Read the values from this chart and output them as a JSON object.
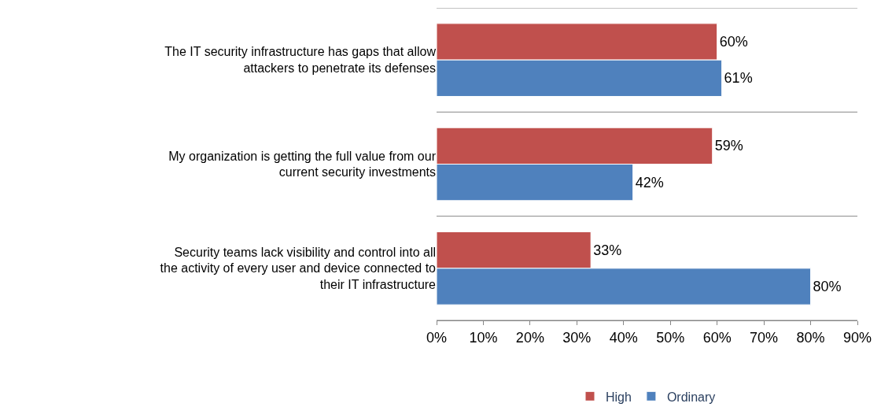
{
  "chart_data": {
    "type": "bar",
    "orientation": "horizontal",
    "categories": [
      "The IT security infrastructure has gaps that allow attackers to penetrate its defenses",
      "My organization is getting the full value from our current security investments",
      "Security teams lack visibility and control into all the activity of every user and device connected to their IT infrastructure"
    ],
    "series": [
      {
        "name": "High",
        "color": "#c0504d",
        "values": [
          60,
          59,
          33
        ],
        "value_labels": [
          "60%",
          "59%",
          "33%"
        ]
      },
      {
        "name": "Ordinary",
        "color": "#4f81bd",
        "values": [
          61,
          42,
          80
        ],
        "value_labels": [
          "61%",
          "42%",
          "80%"
        ]
      }
    ],
    "xlim": [
      0,
      90
    ],
    "xticks": [
      {
        "value": 0,
        "label": "0%"
      },
      {
        "value": 10,
        "label": "10%"
      },
      {
        "value": 20,
        "label": "20%"
      },
      {
        "value": 30,
        "label": "30%"
      },
      {
        "value": 40,
        "label": "40%"
      },
      {
        "value": 50,
        "label": "50%"
      },
      {
        "value": 60,
        "label": "60%"
      },
      {
        "value": 70,
        "label": "70%"
      },
      {
        "value": 80,
        "label": "80%"
      },
      {
        "value": 90,
        "label": "90%"
      }
    ],
    "grid": "y",
    "legend": "bottom"
  }
}
